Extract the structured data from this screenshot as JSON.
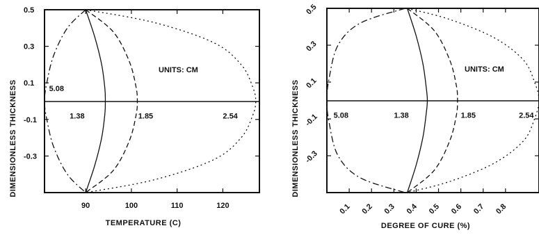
{
  "chart_data": [
    {
      "type": "line",
      "xlabel": "TEMPERATURE (C)",
      "ylabel": "DIMENSIONLESS THICKNESS",
      "units_label": "UNITS: CM",
      "xlim": [
        81,
        128
      ],
      "ylim": [
        -0.5,
        0.5
      ],
      "xticks": [
        90,
        100,
        110,
        120
      ],
      "yticks": [
        0.5,
        0.3,
        0.1,
        -0.1,
        -0.3
      ],
      "ytick_labels": [
        "0.5",
        "0.3",
        "0.1",
        "-0.1",
        "-0.3"
      ],
      "series": [
        {
          "name": "5.08",
          "style": "dashdot",
          "x": [
            90,
            86,
            83,
            81.5,
            81,
            81.5,
            83,
            86,
            90
          ],
          "y": [
            0.5,
            0.4,
            0.25,
            0.1,
            0.0,
            -0.1,
            -0.25,
            -0.4,
            -0.5
          ]
        },
        {
          "name": "1.38",
          "style": "solid",
          "x": [
            90,
            92,
            93.5,
            94.2,
            94.3,
            94.2,
            93.5,
            92,
            90
          ],
          "y": [
            0.5,
            0.35,
            0.2,
            0.07,
            0.0,
            -0.07,
            -0.2,
            -0.35,
            -0.5
          ]
        },
        {
          "name": "1.85",
          "style": "dashed",
          "x": [
            90,
            96,
            99.5,
            101,
            101.3,
            101,
            99.5,
            96,
            90
          ],
          "y": [
            0.5,
            0.38,
            0.22,
            0.08,
            0.0,
            -0.08,
            -0.22,
            -0.38,
            -0.5
          ]
        },
        {
          "name": "2.54",
          "style": "dotted",
          "x": [
            90,
            105,
            118,
            124,
            126.5,
            127.2,
            126.5,
            124,
            118,
            105,
            90
          ],
          "y": [
            0.5,
            0.43,
            0.32,
            0.2,
            0.08,
            0.0,
            -0.08,
            -0.2,
            -0.32,
            -0.43,
            -0.5
          ]
        }
      ],
      "labels": [
        {
          "text": "5.08",
          "x": 82,
          "y": 0.07
        },
        {
          "text": "1.38",
          "x": 86.5,
          "y": -0.08
        },
        {
          "text": "1.85",
          "x": 101.5,
          "y": -0.08
        },
        {
          "text": "2.54",
          "x": 120,
          "y": -0.08
        }
      ]
    },
    {
      "type": "line",
      "xlabel": "DEGREE OF CURE (%)",
      "ylabel": "DIMENSIONLESS THICKNESS",
      "units_label": "UNITS: CM",
      "xlim": [
        0.0,
        0.95
      ],
      "ylim": [
        -0.5,
        0.5
      ],
      "xticks": [
        0.1,
        0.2,
        0.3,
        0.4,
        0.5,
        0.6,
        0.7,
        0.8
      ],
      "xtick_labels": [
        "0.1",
        "0.2",
        "0.3",
        "0.4",
        "0.5",
        "0.6",
        "0.7",
        "0.8"
      ],
      "yticks": [
        0.5,
        0.3,
        0.1,
        -0.1,
        -0.3
      ],
      "ytick_labels": [
        "0.5",
        "0.3",
        "0.1",
        "-0.1",
        "-0.3"
      ],
      "series": [
        {
          "name": "5.08",
          "style": "dashdot",
          "x": [
            0.35,
            0.15,
            0.05,
            0.01,
            0.0,
            0.01,
            0.05,
            0.15,
            0.35
          ],
          "y": [
            0.5,
            0.42,
            0.3,
            0.12,
            0.0,
            -0.12,
            -0.3,
            -0.42,
            -0.5
          ]
        },
        {
          "name": "1.38",
          "style": "solid",
          "x": [
            0.36,
            0.4,
            0.43,
            0.445,
            0.45,
            0.445,
            0.43,
            0.4,
            0.36
          ],
          "y": [
            0.5,
            0.35,
            0.2,
            0.07,
            0.0,
            -0.07,
            -0.2,
            -0.35,
            -0.5
          ]
        },
        {
          "name": "1.85",
          "style": "dashed",
          "x": [
            0.36,
            0.48,
            0.55,
            0.58,
            0.585,
            0.58,
            0.55,
            0.48,
            0.36
          ],
          "y": [
            0.5,
            0.38,
            0.22,
            0.08,
            0.0,
            -0.08,
            -0.22,
            -0.38,
            -0.5
          ]
        },
        {
          "name": "2.54",
          "style": "dotted",
          "x": [
            0.36,
            0.55,
            0.75,
            0.88,
            0.93,
            0.95,
            0.93,
            0.88,
            0.75,
            0.55,
            0.36
          ],
          "y": [
            0.5,
            0.44,
            0.34,
            0.22,
            0.1,
            0.0,
            -0.1,
            -0.22,
            -0.34,
            -0.44,
            -0.5
          ]
        }
      ],
      "labels": [
        {
          "text": "5.08",
          "x": 0.03,
          "y": -0.08
        },
        {
          "text": "1.38",
          "x": 0.3,
          "y": -0.08
        },
        {
          "text": "1.85",
          "x": 0.6,
          "y": -0.08
        },
        {
          "text": "2.54",
          "x": 0.86,
          "y": -0.08
        }
      ]
    }
  ]
}
